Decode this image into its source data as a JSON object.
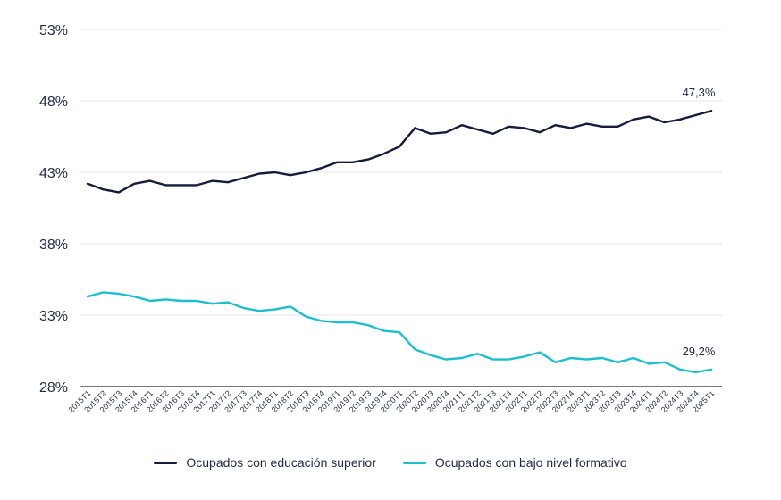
{
  "chart_data": {
    "type": "line",
    "x": [
      "2015T1",
      "2015T2",
      "2015T3",
      "2015T4",
      "2016T1",
      "2016T2",
      "2016T3",
      "2016T4",
      "2017T1",
      "2017T2",
      "2017T3",
      "2017T4",
      "2018T1",
      "2018T2",
      "2018T3",
      "2018T4",
      "2019T1",
      "2019T2",
      "2019T3",
      "2019T4",
      "2020T1",
      "2020T2",
      "2020T3",
      "2020T4",
      "2021T1",
      "2021T2",
      "2021T3",
      "2021T4",
      "2022T1",
      "2022T2",
      "2022T3",
      "2022T4",
      "2023T1",
      "2023T2",
      "2023T3",
      "2023T4",
      "2024T1",
      "2024T2",
      "2024T3",
      "2024T4",
      "2025T1"
    ],
    "series": [
      {
        "name": "Ocupados con educación superior",
        "color": "#141c3a",
        "values": [
          42.2,
          41.8,
          41.6,
          42.2,
          42.4,
          42.1,
          42.1,
          42.1,
          42.4,
          42.3,
          42.6,
          42.9,
          43.0,
          42.8,
          43.0,
          43.3,
          43.7,
          43.7,
          43.9,
          44.3,
          44.8,
          46.1,
          45.7,
          45.8,
          46.3,
          46.0,
          45.7,
          46.2,
          46.1,
          45.8,
          46.3,
          46.1,
          46.4,
          46.2,
          46.2,
          46.7,
          46.9,
          46.5,
          46.7,
          47.0,
          47.3
        ],
        "end_label": "47,3%"
      },
      {
        "name": "Ocupados con bajo nivel formativo",
        "color": "#1dbfcc",
        "values": [
          34.3,
          34.6,
          34.5,
          34.3,
          34.0,
          34.1,
          34.0,
          34.0,
          33.8,
          33.9,
          33.5,
          33.3,
          33.4,
          33.6,
          32.9,
          32.6,
          32.5,
          32.5,
          32.3,
          31.9,
          31.8,
          30.6,
          30.2,
          29.9,
          30.0,
          30.3,
          29.9,
          29.9,
          30.1,
          30.4,
          29.7,
          30.0,
          29.9,
          30.0,
          29.7,
          30.0,
          29.6,
          29.7,
          29.2,
          29.0,
          29.2
        ],
        "end_label": "29,2%"
      }
    ],
    "y_ticks": [
      "28%",
      "33%",
      "38%",
      "43%",
      "48%",
      "53%"
    ],
    "y_tick_values": [
      28,
      33,
      38,
      43,
      48,
      53
    ],
    "ylim": [
      28,
      53
    ],
    "grid": true,
    "legend_position": "bottom-center"
  }
}
